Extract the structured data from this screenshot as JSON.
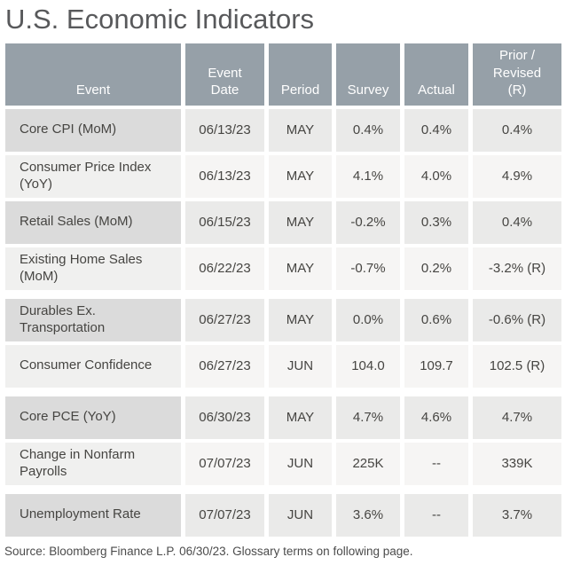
{
  "title": "U.S. Economic Indicators",
  "source": "Source: Bloomberg Finance L.P. 06/30/23. Glossary terms on following page.",
  "colors": {
    "header_bg": "#96A0A8",
    "header_text": "#FFFFFF",
    "row_dark_event": "#DBDBDB",
    "row_dark_cell": "#EAEAE9",
    "row_light_event": "#F0F0EF",
    "row_light_cell": "#F6F5F4",
    "cell_text": "#464542",
    "title_text": "#58595B",
    "source_text": "#4B4B4B"
  },
  "table": {
    "columns": [
      {
        "key": "event",
        "label": "Event"
      },
      {
        "key": "event_date",
        "label": "Event\nDate"
      },
      {
        "key": "period",
        "label": "Period"
      },
      {
        "key": "survey",
        "label": "Survey"
      },
      {
        "key": "actual",
        "label": "Actual"
      },
      {
        "key": "prior_revised",
        "label": "Prior /\nRevised\n(R)"
      }
    ],
    "rows": [
      {
        "event": "Core CPI (MoM)",
        "event_date": "06/13/23",
        "period": "MAY",
        "survey": "0.4%",
        "actual": "0.4%",
        "prior_revised": "0.4%",
        "group_break": false
      },
      {
        "event": "Consumer Price Index (YoY)",
        "event_date": "06/13/23",
        "period": "MAY",
        "survey": "4.1%",
        "actual": "4.0%",
        "prior_revised": "4.9%",
        "group_break": false
      },
      {
        "event": "Retail Sales (MoM)",
        "event_date": "06/15/23",
        "period": "MAY",
        "survey": "-0.2%",
        "actual": "0.3%",
        "prior_revised": "0.4%",
        "group_break": false
      },
      {
        "event": "Existing Home Sales (MoM)",
        "event_date": "06/22/23",
        "period": "MAY",
        "survey": "-0.7%",
        "actual": "0.2%",
        "prior_revised": "-3.2% (R)",
        "group_break": false
      },
      {
        "event": "Durables Ex. Transportation",
        "event_date": "06/27/23",
        "period": "MAY",
        "survey": "0.0%",
        "actual": "0.6%",
        "prior_revised": "-0.6% (R)",
        "group_break": true
      },
      {
        "event": "Consumer Confidence",
        "event_date": "06/27/23",
        "period": "JUN",
        "survey": "104.0",
        "actual": "109.7",
        "prior_revised": "102.5 (R)",
        "group_break": false
      },
      {
        "event": "Core PCE (YoY)",
        "event_date": "06/30/23",
        "period": "MAY",
        "survey": "4.7%",
        "actual": "4.6%",
        "prior_revised": "4.7%",
        "group_break": true
      },
      {
        "event": "Change in Nonfarm Payrolls",
        "event_date": "07/07/23",
        "period": "JUN",
        "survey": "225K",
        "actual": "--",
        "prior_revised": "339K",
        "group_break": false
      },
      {
        "event": "Unemployment Rate",
        "event_date": "07/07/23",
        "period": "JUN",
        "survey": "3.6%",
        "actual": "--",
        "prior_revised": "3.7%",
        "group_break": true
      }
    ]
  }
}
